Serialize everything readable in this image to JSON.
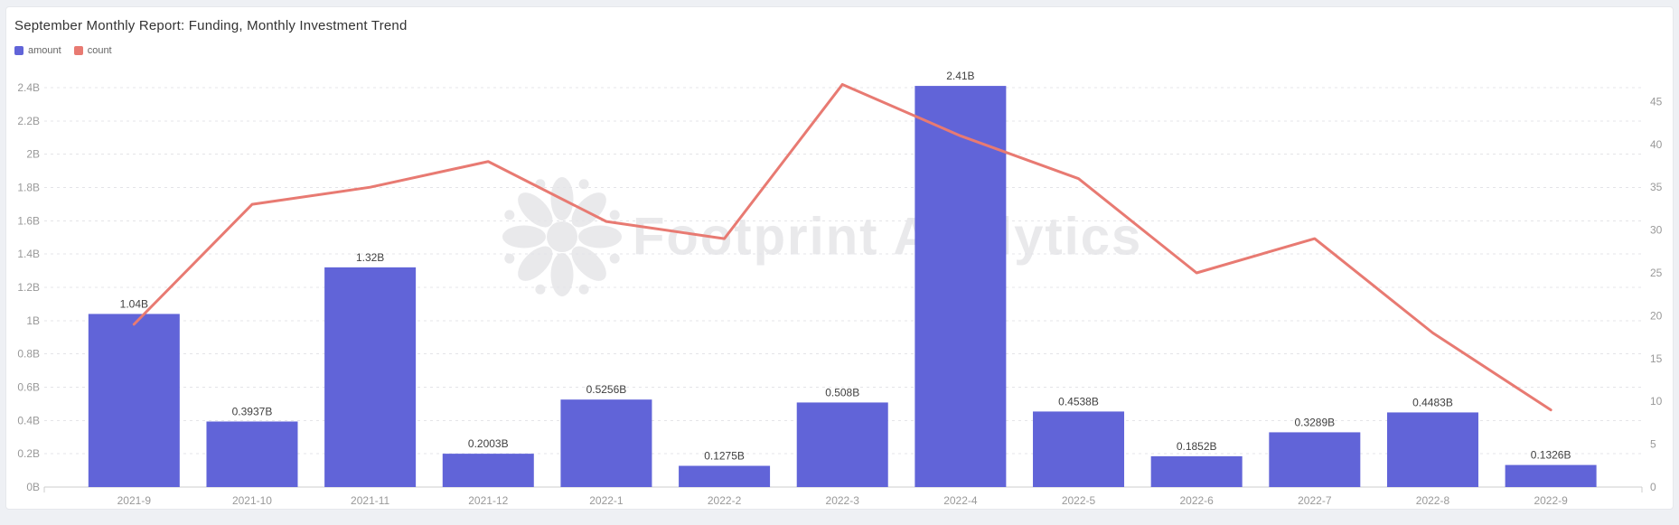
{
  "page": {
    "title": "September Monthly Report: Funding, Monthly Investment Trend"
  },
  "legend": [
    {
      "label": "amount",
      "color": "#6164d8"
    },
    {
      "label": "count",
      "color": "#e87a72"
    }
  ],
  "watermark": {
    "text": "Footprint Analytics"
  },
  "chart_data": {
    "type": "combo-bar-line",
    "title": "September Monthly Report: Funding, Monthly Investment Trend",
    "categories": [
      "2021-9",
      "2021-10",
      "2021-11",
      "2021-12",
      "2022-1",
      "2022-2",
      "2022-3",
      "2022-4",
      "2022-5",
      "2022-6",
      "2022-7",
      "2022-8",
      "2022-9"
    ],
    "series": [
      {
        "name": "amount",
        "type": "bar",
        "color": "#6164d8",
        "unit": "B",
        "values": [
          1.04,
          0.3937,
          1.32,
          0.2003,
          0.5256,
          0.1275,
          0.508,
          2.41,
          0.4538,
          0.1852,
          0.3289,
          0.4483,
          0.1326
        ],
        "display_labels": [
          "1.04B",
          "0.3937B",
          "1.32B",
          "0.2003B",
          "0.5256B",
          "0.1275B",
          "0.508B",
          "2.41B",
          "0.4538B",
          "0.1852B",
          "0.3289B",
          "0.4483B",
          "0.1326B"
        ]
      },
      {
        "name": "count",
        "type": "line",
        "color": "#e87a72",
        "values": [
          19,
          33,
          35,
          38,
          31,
          29,
          47,
          41,
          36,
          25,
          29,
          18,
          9
        ]
      }
    ],
    "left_axis": {
      "min": 0,
      "max": 2.4,
      "step": 0.2,
      "unit": "B",
      "tick_labels": [
        "0B",
        "0.2B",
        "0.4B",
        "0.6B",
        "0.8B",
        "1B",
        "1.2B",
        "1.4B",
        "1.6B",
        "1.8B",
        "2B",
        "2.2B",
        "2.4B"
      ]
    },
    "right_axis": {
      "min": 0,
      "max": 45,
      "step": 5,
      "tick_labels": [
        "0",
        "5",
        "10",
        "15",
        "20",
        "25",
        "30",
        "35",
        "40",
        "45"
      ]
    },
    "grid": "horizontal-dashed",
    "legend_position": "top-left",
    "colors": {
      "grid_line": "#e4e4e8",
      "axis_line": "#cccccc",
      "axis_text": "#999999",
      "value_label_text": "#404040",
      "watermark": "#e9e9eb"
    }
  }
}
